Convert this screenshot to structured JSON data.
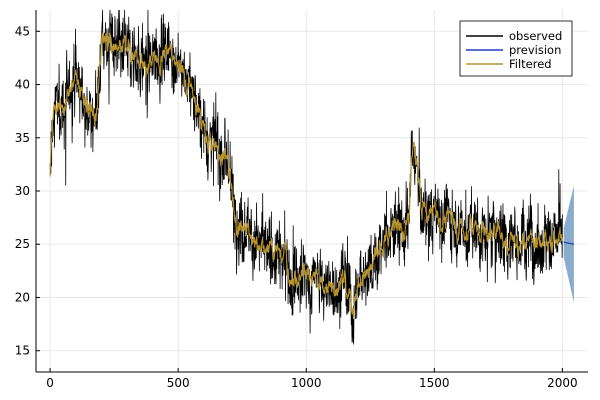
{
  "chart_data": {
    "type": "line",
    "title": "",
    "xlabel": "",
    "ylabel": "",
    "xlim": [
      -55,
      2100
    ],
    "ylim": [
      13,
      47
    ],
    "xticks": [
      0,
      500,
      1000,
      1500,
      2000
    ],
    "yticks": [
      15,
      20,
      25,
      30,
      35,
      40,
      45
    ],
    "grid": true,
    "legend_position": "top-right",
    "series": [
      {
        "name": "observed",
        "color": "#000000",
        "noise": 3.0,
        "key": "observed"
      },
      {
        "name": "prevision",
        "color": "#1f3fbf",
        "key": "prevision"
      },
      {
        "name": "Filtered",
        "color": "#b8932a",
        "noise": 1.0,
        "key": "filtered"
      }
    ],
    "trend": {
      "x": [
        0,
        10,
        30,
        60,
        100,
        150,
        180,
        200,
        205,
        250,
        300,
        350,
        400,
        450,
        470,
        500,
        550,
        600,
        650,
        700,
        720,
        750,
        800,
        850,
        900,
        950,
        1000,
        1050,
        1100,
        1150,
        1170,
        1180,
        1200,
        1250,
        1300,
        1350,
        1380,
        1400,
        1410,
        1420,
        1440,
        1450,
        1500,
        1550,
        1600,
        1650,
        1700,
        1750,
        1800,
        1850,
        1900,
        1950,
        2000
      ],
      "y": [
        31,
        36,
        38,
        38,
        41,
        37,
        37,
        43,
        44,
        43.5,
        43,
        42,
        42.5,
        43,
        43,
        41.5,
        40,
        36,
        34,
        32,
        28,
        27,
        25.5,
        24,
        23.5,
        22,
        22,
        21.5,
        21,
        21.5,
        20,
        19,
        21,
        23,
        25,
        27,
        26,
        27,
        33,
        34,
        30,
        28,
        27.5,
        27.5,
        26.5,
        26.5,
        26,
        26,
        25.5,
        25.5,
        25.5,
        25.5,
        25.5
      ]
    },
    "forecast": {
      "x": [
        2005,
        2045
      ],
      "mean": [
        25.2,
        25.0
      ],
      "upper": [
        26.5,
        30.5
      ],
      "lower": [
        23.8,
        19.5
      ],
      "band_color": "#4a7fb0"
    }
  },
  "legend": {
    "observed_label": "observed",
    "prevision_label": "prevision",
    "filtered_label": "Filtered"
  }
}
